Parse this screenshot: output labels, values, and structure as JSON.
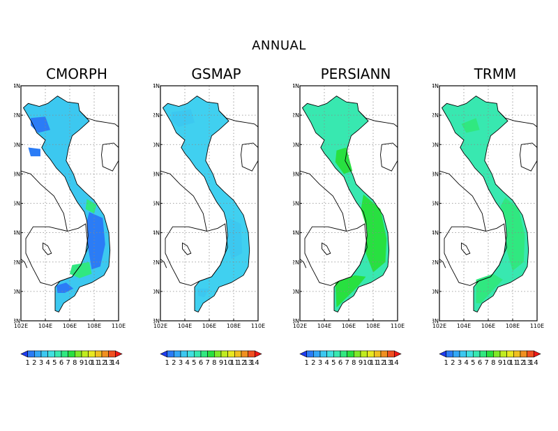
{
  "title": "ANNUAL",
  "panels": [
    {
      "name": "CMORPH",
      "tone": "cmorph"
    },
    {
      "name": "GSMAP",
      "tone": "gsmap"
    },
    {
      "name": "PERSIANN",
      "tone": "persiann"
    },
    {
      "name": "TRMM",
      "tone": "trmm"
    }
  ],
  "axes": {
    "lat_ticks": [
      "24N",
      "22N",
      "20N",
      "18N",
      "16N",
      "14N",
      "12N",
      "10N",
      "8N"
    ],
    "lon_ticks": [
      "102E",
      "104E",
      "106E",
      "108E",
      "110E"
    ]
  },
  "colorbar": {
    "labels": [
      "1",
      "2",
      "3",
      "4",
      "5",
      "6",
      "7",
      "8",
      "9",
      "10",
      "11",
      "12",
      "13",
      "14"
    ],
    "colors": [
      "#1f3cf0",
      "#2b7cf6",
      "#34a8f6",
      "#3cc8f0",
      "#40e0e0",
      "#38e8b0",
      "#30e880",
      "#28e040",
      "#80e828",
      "#c0ec20",
      "#e8e820",
      "#f0c020",
      "#f09020",
      "#f05020",
      "#f01818"
    ]
  },
  "colors": {
    "cmorph_base": "#3cc8f0",
    "cmorph_dark": "#2b7cf6",
    "cmorph_green": "#30e880",
    "gsmap_base": "#40d0f0",
    "gsmap_light": "#3cc8f0",
    "persiann_base": "#38e8b0",
    "persiann_green": "#28e040",
    "trmm_base": "#38e8b0",
    "trmm_green": "#30e880"
  }
}
